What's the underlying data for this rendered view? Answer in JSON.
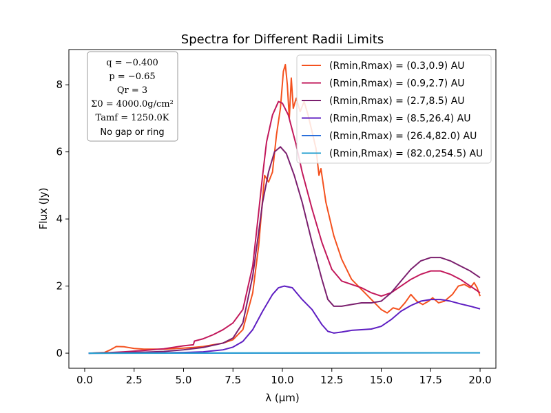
{
  "chart_data": {
    "type": "line",
    "title": "Spectra for Different Radii Limits",
    "xlabel": "λ (μm)",
    "ylabel": "Flux (Jy)",
    "xlim": [
      -0.8,
      20.8
    ],
    "ylim": [
      -0.45,
      9.05
    ],
    "xticks": [
      0.0,
      2.5,
      5.0,
      7.5,
      10.0,
      12.5,
      15.0,
      17.5,
      20.0
    ],
    "xtick_labels": [
      "0.0",
      "2.5",
      "5.0",
      "7.5",
      "10.0",
      "12.5",
      "15.0",
      "17.5",
      "20.0"
    ],
    "yticks": [
      0,
      2,
      4,
      6,
      8
    ],
    "ytick_labels": [
      "0",
      "2",
      "4",
      "6",
      "8"
    ],
    "legend_position": "top-right",
    "series": [
      {
        "name": "(Rmin,Rmax) = (0.3,0.9) AU",
        "color": "#f4511e",
        "points": [
          [
            0.2,
            0.0
          ],
          [
            1.0,
            0.02
          ],
          [
            1.3,
            0.1
          ],
          [
            1.6,
            0.2
          ],
          [
            2.0,
            0.19
          ],
          [
            2.5,
            0.14
          ],
          [
            3.0,
            0.12
          ],
          [
            4.0,
            0.12
          ],
          [
            5.0,
            0.15
          ],
          [
            5.5,
            0.17
          ],
          [
            6.0,
            0.2
          ],
          [
            6.5,
            0.25
          ],
          [
            7.0,
            0.3
          ],
          [
            7.5,
            0.4
          ],
          [
            8.0,
            0.7
          ],
          [
            8.5,
            1.8
          ],
          [
            8.8,
            3.2
          ],
          [
            9.1,
            5.3
          ],
          [
            9.3,
            5.1
          ],
          [
            9.5,
            5.4
          ],
          [
            9.7,
            6.5
          ],
          [
            9.9,
            7.3
          ],
          [
            10.05,
            8.4
          ],
          [
            10.15,
            8.6
          ],
          [
            10.25,
            8.0
          ],
          [
            10.35,
            7.0
          ],
          [
            10.45,
            8.2
          ],
          [
            10.55,
            7.3
          ],
          [
            10.7,
            7.6
          ],
          [
            10.9,
            7.2
          ],
          [
            11.1,
            7.5
          ],
          [
            11.3,
            7.1
          ],
          [
            11.5,
            6.6
          ],
          [
            11.7,
            6.1
          ],
          [
            11.85,
            5.3
          ],
          [
            11.95,
            5.5
          ],
          [
            12.2,
            4.5
          ],
          [
            12.6,
            3.5
          ],
          [
            13.0,
            2.8
          ],
          [
            13.5,
            2.2
          ],
          [
            14.0,
            1.9
          ],
          [
            14.5,
            1.6
          ],
          [
            15.0,
            1.3
          ],
          [
            15.3,
            1.2
          ],
          [
            15.6,
            1.35
          ],
          [
            15.9,
            1.3
          ],
          [
            16.2,
            1.5
          ],
          [
            16.5,
            1.75
          ],
          [
            16.8,
            1.55
          ],
          [
            17.1,
            1.45
          ],
          [
            17.4,
            1.55
          ],
          [
            17.6,
            1.65
          ],
          [
            17.9,
            1.5
          ],
          [
            18.2,
            1.55
          ],
          [
            18.6,
            1.75
          ],
          [
            18.9,
            2.0
          ],
          [
            19.2,
            2.05
          ],
          [
            19.5,
            1.95
          ],
          [
            19.7,
            2.1
          ],
          [
            19.85,
            1.95
          ],
          [
            20.0,
            1.7
          ]
        ]
      },
      {
        "name": "(Rmin,Rmax) = (0.9,2.7) AU",
        "color": "#c2185b",
        "points": [
          [
            0.2,
            0.0
          ],
          [
            1.0,
            0.01
          ],
          [
            2.0,
            0.04
          ],
          [
            3.0,
            0.08
          ],
          [
            4.0,
            0.13
          ],
          [
            5.0,
            0.22
          ],
          [
            5.5,
            0.25
          ],
          [
            5.55,
            0.36
          ],
          [
            6.0,
            0.43
          ],
          [
            6.5,
            0.55
          ],
          [
            7.0,
            0.7
          ],
          [
            7.5,
            0.9
          ],
          [
            8.0,
            1.3
          ],
          [
            8.5,
            2.6
          ],
          [
            8.8,
            4.2
          ],
          [
            9.0,
            5.3
          ],
          [
            9.2,
            6.3
          ],
          [
            9.5,
            7.1
          ],
          [
            9.8,
            7.5
          ],
          [
            10.0,
            7.45
          ],
          [
            10.3,
            7.1
          ],
          [
            10.7,
            6.2
          ],
          [
            11.0,
            5.4
          ],
          [
            11.5,
            4.3
          ],
          [
            12.0,
            3.3
          ],
          [
            12.5,
            2.5
          ],
          [
            13.0,
            2.15
          ],
          [
            13.5,
            2.05
          ],
          [
            14.0,
            1.95
          ],
          [
            14.5,
            1.8
          ],
          [
            15.0,
            1.7
          ],
          [
            15.5,
            1.8
          ],
          [
            16.0,
            2.0
          ],
          [
            16.5,
            2.2
          ],
          [
            17.0,
            2.35
          ],
          [
            17.5,
            2.45
          ],
          [
            18.0,
            2.45
          ],
          [
            18.5,
            2.35
          ],
          [
            19.0,
            2.2
          ],
          [
            19.5,
            2.0
          ],
          [
            20.0,
            1.8
          ]
        ]
      },
      {
        "name": "(Rmin,Rmax) = (2.7,8.5) AU",
        "color": "#7b1f6e",
        "points": [
          [
            0.2,
            0.0
          ],
          [
            1.0,
            0.01
          ],
          [
            2.0,
            0.02
          ],
          [
            3.0,
            0.03
          ],
          [
            4.0,
            0.05
          ],
          [
            5.0,
            0.1
          ],
          [
            6.0,
            0.17
          ],
          [
            7.0,
            0.3
          ],
          [
            7.5,
            0.45
          ],
          [
            8.0,
            0.9
          ],
          [
            8.5,
            2.3
          ],
          [
            8.8,
            3.6
          ],
          [
            9.0,
            4.5
          ],
          [
            9.3,
            5.4
          ],
          [
            9.6,
            6.0
          ],
          [
            9.9,
            6.15
          ],
          [
            10.2,
            5.95
          ],
          [
            10.6,
            5.3
          ],
          [
            11.0,
            4.5
          ],
          [
            11.5,
            3.3
          ],
          [
            12.0,
            2.2
          ],
          [
            12.3,
            1.6
          ],
          [
            12.6,
            1.4
          ],
          [
            13.0,
            1.4
          ],
          [
            13.5,
            1.45
          ],
          [
            14.0,
            1.5
          ],
          [
            14.5,
            1.5
          ],
          [
            15.0,
            1.55
          ],
          [
            15.5,
            1.8
          ],
          [
            16.0,
            2.15
          ],
          [
            16.5,
            2.5
          ],
          [
            17.0,
            2.75
          ],
          [
            17.5,
            2.85
          ],
          [
            18.0,
            2.85
          ],
          [
            18.5,
            2.75
          ],
          [
            19.0,
            2.6
          ],
          [
            19.5,
            2.45
          ],
          [
            20.0,
            2.25
          ]
        ]
      },
      {
        "name": "(Rmin,Rmax) = (8.5,26.4) AU",
        "color": "#5e1ec2",
        "points": [
          [
            0.2,
            0.0
          ],
          [
            2.0,
            0.005
          ],
          [
            4.0,
            0.01
          ],
          [
            5.0,
            0.02
          ],
          [
            6.0,
            0.04
          ],
          [
            7.0,
            0.1
          ],
          [
            7.5,
            0.18
          ],
          [
            8.0,
            0.35
          ],
          [
            8.5,
            0.7
          ],
          [
            9.0,
            1.25
          ],
          [
            9.5,
            1.75
          ],
          [
            9.8,
            1.95
          ],
          [
            10.1,
            2.0
          ],
          [
            10.5,
            1.95
          ],
          [
            11.0,
            1.6
          ],
          [
            11.5,
            1.3
          ],
          [
            12.0,
            0.85
          ],
          [
            12.3,
            0.65
          ],
          [
            12.6,
            0.6
          ],
          [
            13.0,
            0.63
          ],
          [
            13.5,
            0.68
          ],
          [
            14.0,
            0.7
          ],
          [
            14.5,
            0.72
          ],
          [
            15.0,
            0.8
          ],
          [
            15.5,
            1.0
          ],
          [
            16.0,
            1.25
          ],
          [
            16.5,
            1.42
          ],
          [
            17.0,
            1.55
          ],
          [
            17.5,
            1.6
          ],
          [
            18.0,
            1.6
          ],
          [
            18.5,
            1.55
          ],
          [
            19.0,
            1.47
          ],
          [
            19.5,
            1.4
          ],
          [
            20.0,
            1.32
          ]
        ]
      },
      {
        "name": "(Rmin,Rmax) = (26.4,82.0) AU",
        "color": "#2a6fdb",
        "points": [
          [
            0.2,
            0.0
          ],
          [
            5.0,
            0.002
          ],
          [
            10.0,
            0.005
          ],
          [
            15.0,
            0.008
          ],
          [
            20.0,
            0.01
          ]
        ]
      },
      {
        "name": "(Rmin,Rmax) = (82.0,254.5) AU",
        "color": "#26a0d0",
        "points": [
          [
            0.2,
            0.0
          ],
          [
            5.0,
            0.003
          ],
          [
            10.0,
            0.006
          ],
          [
            15.0,
            0.009
          ],
          [
            20.0,
            0.012
          ]
        ]
      }
    ],
    "parameters": [
      "q = −0.400",
      "p = −0.65",
      "Qr = 3",
      "Σ0 = 4000.0g/cm²",
      "Tamf = 1250.0K",
      "No gap or ring"
    ]
  }
}
